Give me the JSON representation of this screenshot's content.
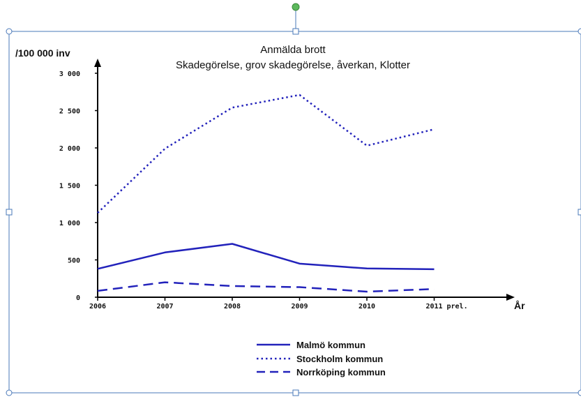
{
  "colors": {
    "series": "#2222bb",
    "axis": "#000000",
    "frame": "#4a78b8",
    "handle_green": "#5cb85c"
  },
  "chart_data": {
    "type": "line",
    "title": "Anmälda brott",
    "subtitle": "Skadegörelse, grov skadegörelse, åverkan, Klotter",
    "ylabel": "/100 000 inv",
    "xlabel": "År",
    "categories": [
      "2006",
      "2007",
      "2008",
      "2009",
      "2010",
      "2011"
    ],
    "tick_suffix": "prel.",
    "ylim": [
      0,
      3000
    ],
    "yticks": [
      "0",
      "500",
      "1 000",
      "1 500",
      "2 000",
      "2 500",
      "3 000"
    ],
    "ytick_values": [
      0,
      500,
      1000,
      1500,
      2000,
      2500,
      3000
    ],
    "grid": false,
    "legend_position": "bottom",
    "series": [
      {
        "name": "Malmö kommun",
        "style": "solid",
        "values": [
          380,
          600,
          715,
          450,
          385,
          375
        ]
      },
      {
        "name": "Stockholm kommun",
        "style": "dotted",
        "values": [
          1130,
          1990,
          2540,
          2710,
          2030,
          2250
        ]
      },
      {
        "name": "Norrköping kommun",
        "style": "dashed",
        "values": [
          85,
          200,
          150,
          135,
          75,
          110
        ]
      }
    ]
  }
}
